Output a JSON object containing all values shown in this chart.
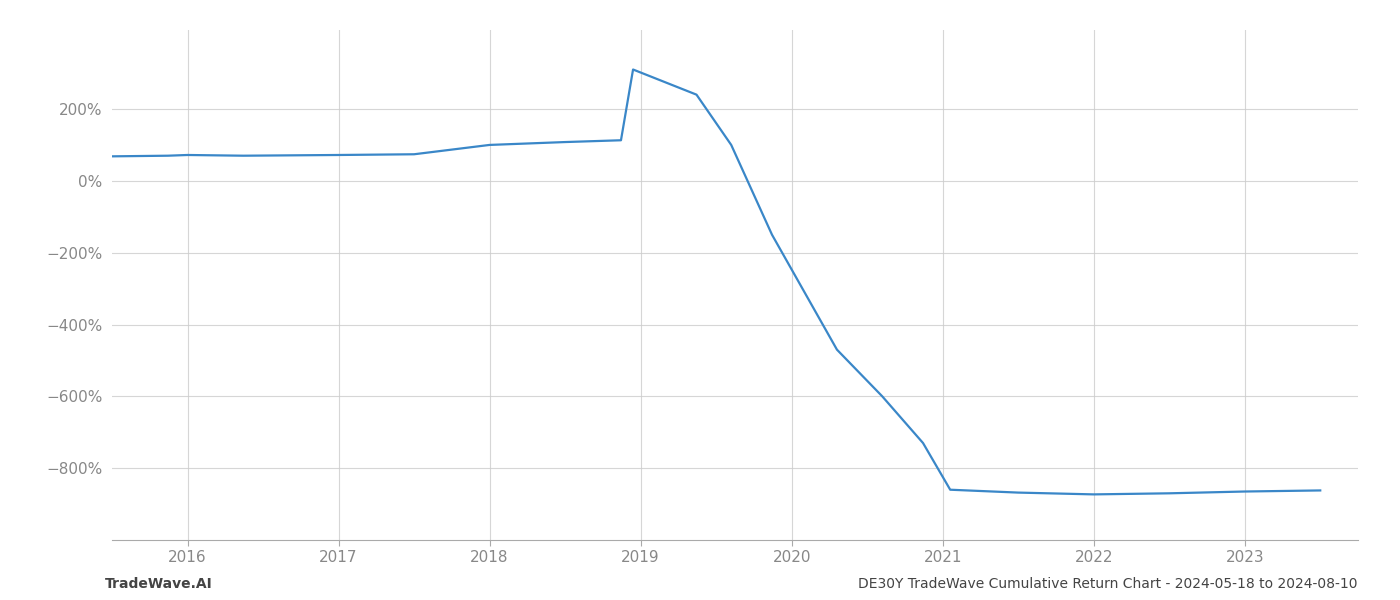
{
  "x_years": [
    2015.45,
    2015.87,
    2016.0,
    2016.37,
    2017.0,
    2017.5,
    2018.0,
    2018.5,
    2018.87,
    2018.95,
    2019.37,
    2019.6,
    2019.87,
    2020.3,
    2020.6,
    2020.87,
    2021.05,
    2021.5,
    2022.0,
    2022.5,
    2023.0,
    2023.5
  ],
  "y_values": [
    68,
    70,
    72,
    70,
    72,
    74,
    100,
    108,
    113,
    310,
    240,
    100,
    -150,
    -470,
    -600,
    -730,
    -860,
    -868,
    -873,
    -870,
    -865,
    -862
  ],
  "line_color": "#3a87c8",
  "line_width": 1.6,
  "xlim": [
    2015.5,
    2023.75
  ],
  "ylim": [
    -1000,
    420
  ],
  "yticks": [
    -800,
    -600,
    -400,
    -200,
    0,
    200
  ],
  "ytick_labels": [
    "−800%",
    "−600%",
    "−400%",
    "−200%",
    "0%",
    "200%"
  ],
  "xticks": [
    2016,
    2017,
    2018,
    2019,
    2020,
    2021,
    2022,
    2023
  ],
  "grid_color": "#cccccc",
  "grid_alpha": 0.8,
  "background_color": "#ffffff",
  "footer_left": "TradeWave.AI",
  "footer_right": "DE30Y TradeWave Cumulative Return Chart - 2024-05-18 to 2024-08-10",
  "footer_fontsize": 10,
  "tick_fontsize": 11,
  "tick_color": "#888888",
  "spine_color": "#aaaaaa"
}
